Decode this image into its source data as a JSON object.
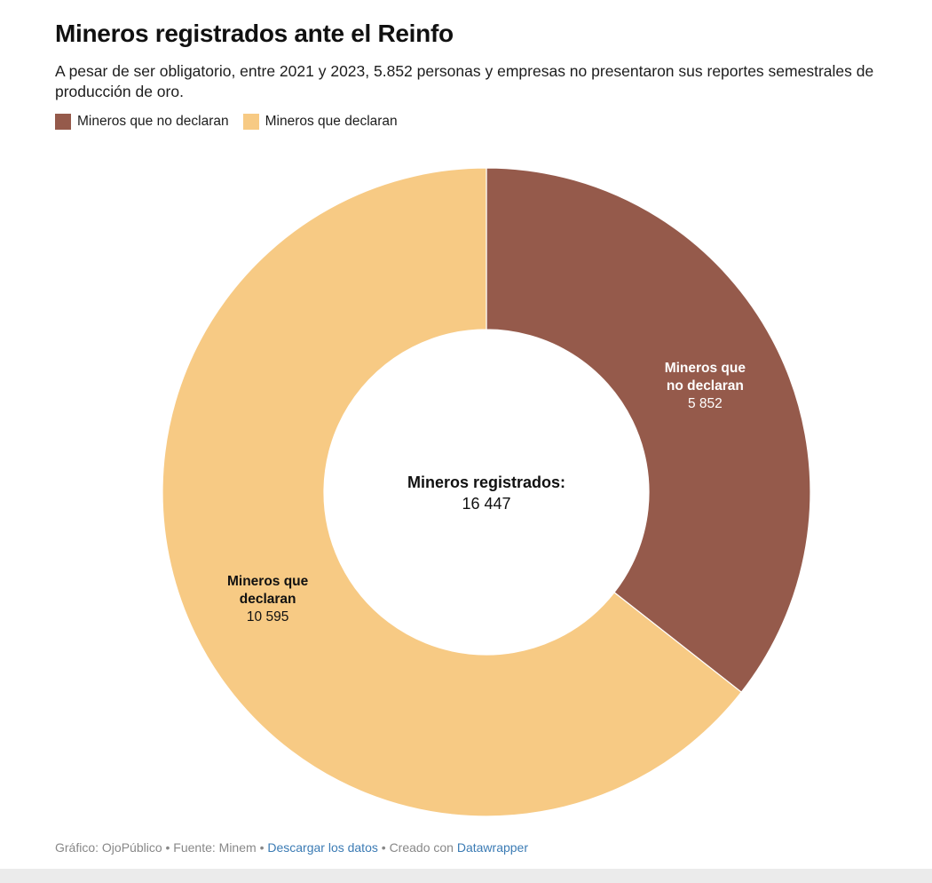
{
  "title": "Mineros registrados ante el Reinfo",
  "subtitle": "A pesar de ser obligatorio, entre 2021 y 2023, 5.852 personas y empresas no presentaron sus reportes semestrales de producción de oro.",
  "legend": [
    {
      "label": "Mineros que no declaran",
      "color": "#955a4b"
    },
    {
      "label": "Mineros que declaran",
      "color": "#f7ca84"
    }
  ],
  "chart_data": {
    "type": "pie",
    "variant": "donut",
    "slices": [
      {
        "label_lines": [
          "Mineros que",
          "no declaran"
        ],
        "value": 5852,
        "value_label": "5 852",
        "color": "#955a4b",
        "label_color": "#ffffff"
      },
      {
        "label_lines": [
          "Mineros que",
          "declaran"
        ],
        "value": 10595,
        "value_label": "10 595",
        "color": "#f7ca84",
        "label_color": "#111111"
      }
    ],
    "center_label": "Mineros registrados:",
    "center_value": "16 447",
    "legend_position": "top-left"
  },
  "footer": {
    "credit": "Gráfico: OjoPúblico",
    "separator": "•",
    "source": "Fuente: Minem",
    "download_link": "Descargar los datos",
    "created_with": "Creado con",
    "tool_link": "Datawrapper"
  }
}
